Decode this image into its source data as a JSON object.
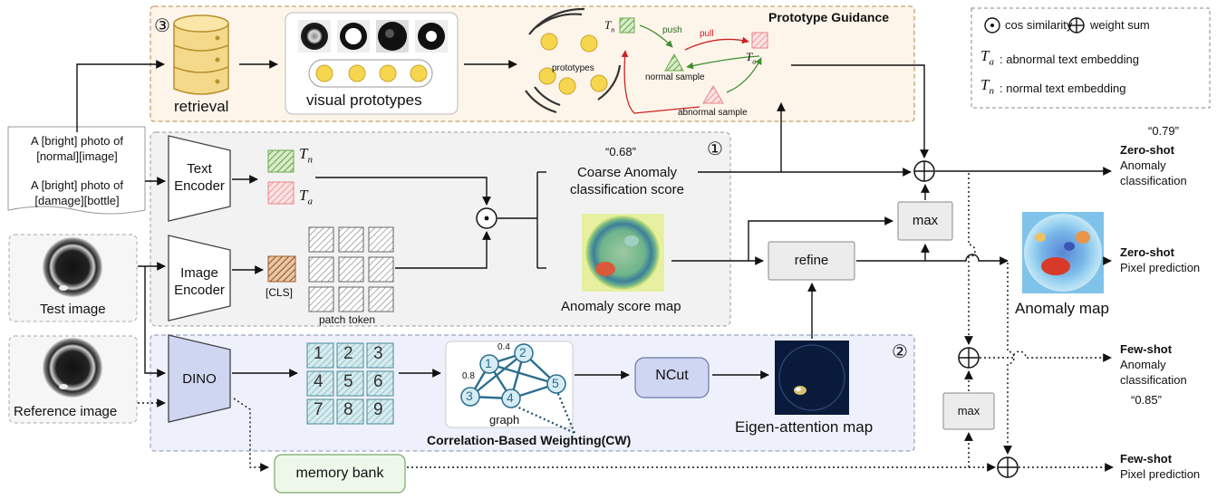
{
  "legend": {
    "cos_similarity": "cos similarity",
    "weight_sum": "weight sum",
    "ta_desc": ": abnormal text embedding",
    "tn_desc": ": normal text embedding"
  },
  "symbols": {
    "t": "T",
    "sub_a": "a",
    "sub_n": "n",
    "circ_1": "①",
    "circ_2": "②",
    "circ_3": "③"
  },
  "prompt": {
    "line1": "A [bright] photo of",
    "line2": "[normal][image]",
    "line3": "A [bright] photo of",
    "line4": "[damage][bottle]"
  },
  "labels": {
    "test_image": "Test image",
    "reference_image": "Reference  image",
    "text_encoder_1": "Text",
    "text_encoder_2": "Encoder",
    "image_encoder_1": "Image",
    "image_encoder_2": "Encoder",
    "dino": "DINO",
    "cls": "[CLS]",
    "patch_token": "patch token",
    "retrieval": "retrieval",
    "visual_prototypes": "visual prototypes",
    "prototype_guidance": "Prototype Guidance",
    "prototypes": "prototypes",
    "push": "push",
    "pull": "pull",
    "normal_sample": "normal sample",
    "abnormal_sample": "abnormal sample",
    "coarse_value": "“0.68”",
    "coarse_1": "Coarse Anomaly",
    "coarse_2": "classification score",
    "anomaly_score_map": "Anomaly score map",
    "refine": "refine",
    "max": "max",
    "ncut": "NCut",
    "eigen_attention_map": "Eigen-attention map",
    "graph": "graph",
    "cw": "Correlation-Based Weighting(CW)",
    "memory_bank": "memory bank",
    "anomaly_map": "Anomaly map"
  },
  "grid_numbers": [
    "1",
    "2",
    "3",
    "4",
    "5",
    "6",
    "7",
    "8",
    "9"
  ],
  "graph": {
    "nodes": [
      "1",
      "2",
      "3",
      "4",
      "5"
    ],
    "weights": [
      "0.4",
      "0.8"
    ]
  },
  "outputs": {
    "zs_cls_value": "“0.79”",
    "zs_cls_title": "Zero-shot",
    "zs_cls_1": "Anomaly",
    "zs_cls_2": "classification",
    "zs_px_title": "Zero-shot",
    "zs_px_1": "Pixel prediction",
    "fs_cls_title": "Few-shot",
    "fs_cls_1": "Anomaly",
    "fs_cls_2": "classification",
    "fs_cls_value": "“0.85”",
    "fs_px_title": "Few-shot",
    "fs_px_1": "Pixel prediction"
  },
  "colors": {
    "normal_green": "#8fc46a",
    "abnormal_red": "#e8848a",
    "cls_brown": "#a05a2c",
    "patch_grey": "#8a8a8a",
    "graph_teal": "#2b6e8f",
    "prototype_yellow": "#f7d64f",
    "guidance_bg": "#fdf5ea",
    "zero_shot_bg": "#f2f2f2",
    "few_shot_bg": "#eef1fb",
    "memory_green": "#eef8ea",
    "pull_red": "#cc2222",
    "push_green": "#3f8f2f"
  }
}
